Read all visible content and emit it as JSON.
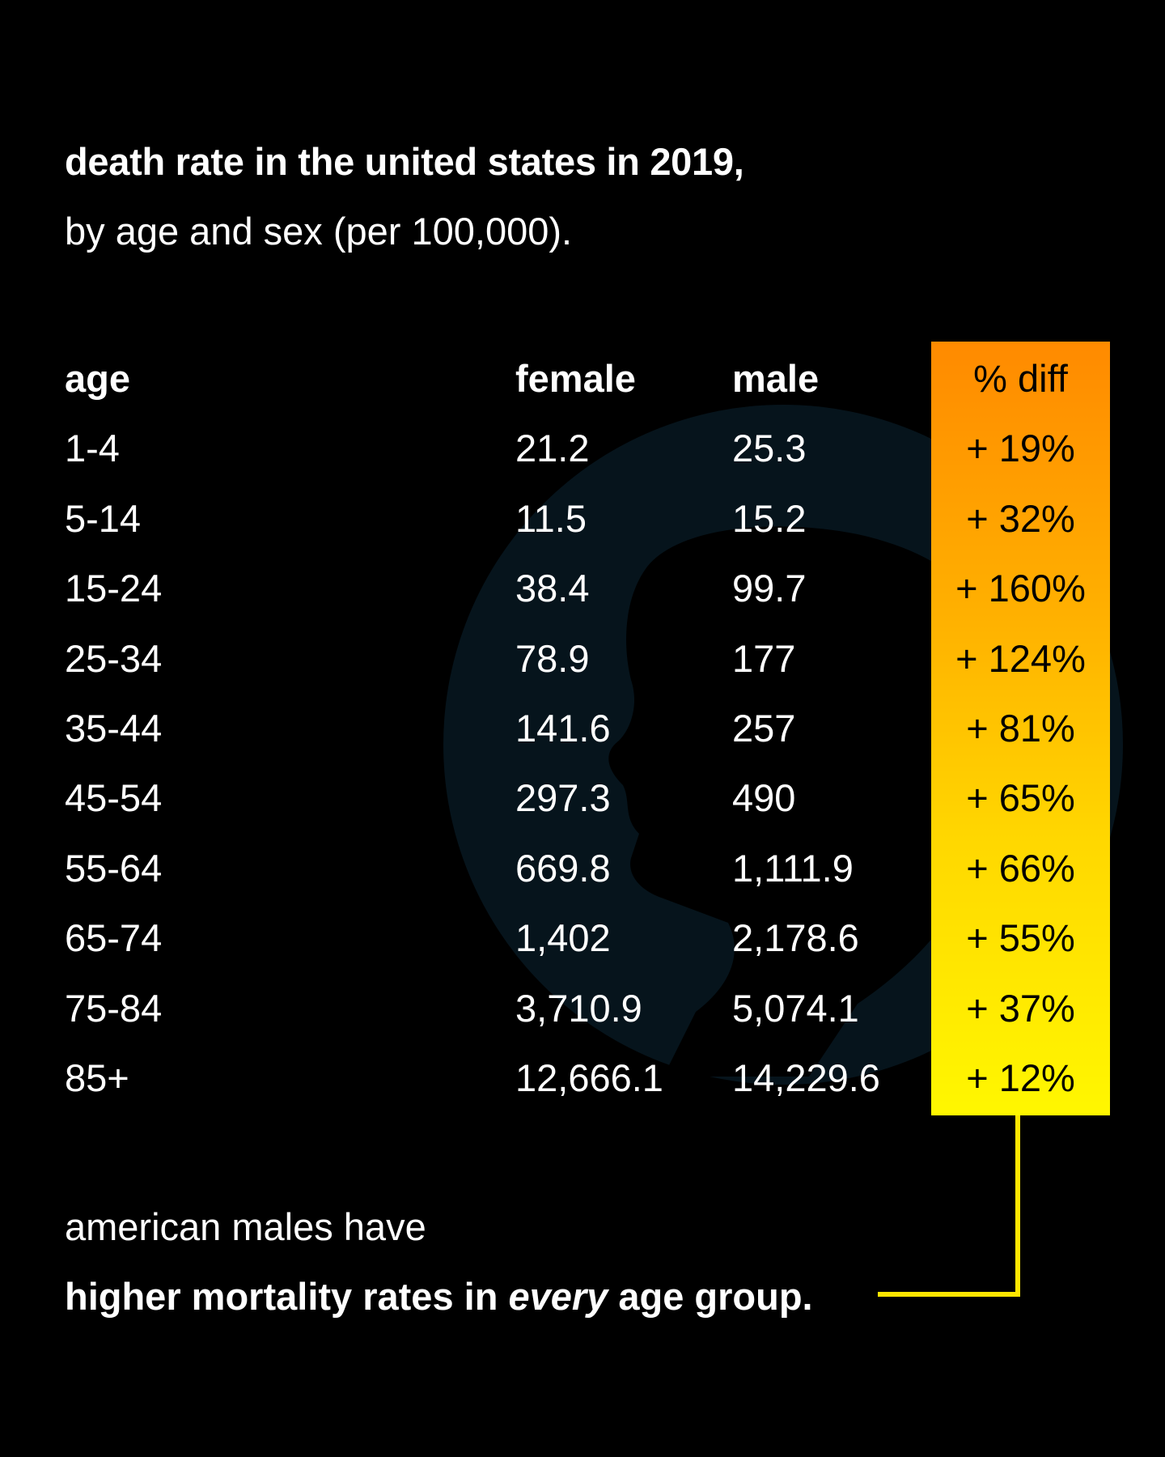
{
  "title": "death rate in the united states in 2019,",
  "subtitle": "by age and sex (per 100,000).",
  "footer": {
    "line1": "american males have",
    "line2_pre": "higher mortality rates in ",
    "line2_em": "every",
    "line2_post": " age group."
  },
  "colors": {
    "background": "#000000",
    "text": "#ffffff",
    "diff_gradient_top": "#ff8a00",
    "diff_gradient_bottom": "#fff700",
    "connector": "#ffe600",
    "circle": "#06141c"
  },
  "chart_data": {
    "type": "table",
    "title": "death rate in the united states in 2019, by age and sex (per 100,000).",
    "columns": [
      "age",
      "female",
      "male",
      "% diff"
    ],
    "rows": [
      {
        "age": "1-4",
        "female": "21.2",
        "male": "25.3",
        "diff": "+ 19%"
      },
      {
        "age": "5-14",
        "female": "11.5",
        "male": "15.2",
        "diff": "+ 32%"
      },
      {
        "age": "15-24",
        "female": "38.4",
        "male": "99.7",
        "diff": "+ 160%"
      },
      {
        "age": "25-34",
        "female": "78.9",
        "male": "177",
        "diff": "+ 124%"
      },
      {
        "age": "35-44",
        "female": "141.6",
        "male": "257",
        "diff": "+ 81%"
      },
      {
        "age": "45-54",
        "female": "297.3",
        "male": "490",
        "diff": "+ 65%"
      },
      {
        "age": "55-64",
        "female": "669.8",
        "male": "1,111.9",
        "diff": "+ 66%"
      },
      {
        "age": "65-74",
        "female": "1,402",
        "male": "2,178.6",
        "diff": "+ 55%"
      },
      {
        "age": "75-84",
        "female": "3,710.9",
        "male": "5,074.1",
        "diff": "+ 37%"
      },
      {
        "age": "85+",
        "female": "12,666.1",
        "male": "14,229.6",
        "diff": "+ 12%"
      }
    ],
    "annotation": "american males have higher mortality rates in every age group."
  }
}
